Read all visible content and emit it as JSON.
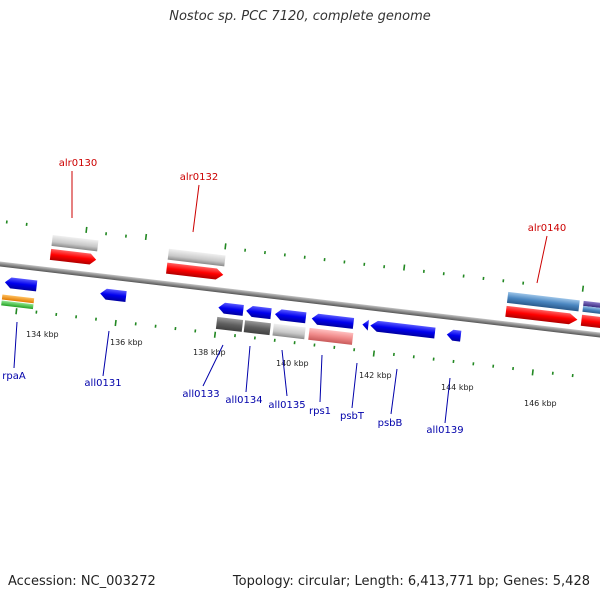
{
  "header": {
    "title": "Nostoc sp. PCC 7120, complete genome"
  },
  "footer": {
    "accession": "Accession: NC_003272",
    "summary": "Topology: circular; Length: 6,413,771 bp; Genes: 5,428"
  },
  "colors": {
    "backbone": "#8a8a8a",
    "tick": "#228822",
    "forward_gene": "#ff0000",
    "reverse_gene": "#0000ee",
    "label_forward": "#cc0000",
    "label_reverse": "#0000aa"
  },
  "scale_labels": [
    "134 kbp",
    "136 kbp",
    "138 kbp",
    "140 kbp",
    "142 kbp",
    "144 kbp",
    "146 kbp"
  ],
  "forward_gene_labels": [
    "alr0130",
    "alr0132",
    "alr0140"
  ],
  "reverse_gene_labels": [
    "rpaA",
    "all0131",
    "all0133",
    "all0134",
    "all0135",
    "rps1",
    "psbT",
    "psbB",
    "all0139"
  ]
}
